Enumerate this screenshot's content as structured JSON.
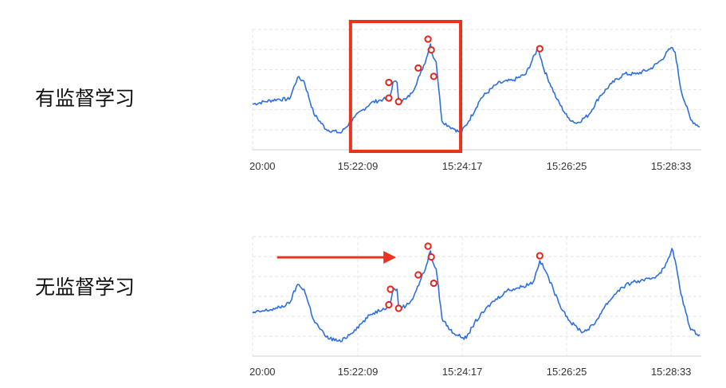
{
  "panels": [
    {
      "label": "有监督学习"
    },
    {
      "label": "无监督学习"
    }
  ],
  "colors": {
    "series": "#2f6fdc",
    "anomaly": "#e8231a",
    "highlight": "#e8341c"
  },
  "chart_data": [
    {
      "type": "line",
      "xlabel": "",
      "ylabel": "",
      "grid": true,
      "x_ticks": [
        {
          "label": "20:00",
          "t": 0
        },
        {
          "label": "15:22:09",
          "t": 129
        },
        {
          "label": "15:24:17",
          "t": 257
        },
        {
          "label": "15:26:25",
          "t": 385
        },
        {
          "label": "15:28:33",
          "t": 513
        }
      ],
      "xlim": [
        0,
        550
      ],
      "ylim": [
        0,
        100
      ],
      "series": [
        {
          "points": [
            [
              0,
              38
            ],
            [
              15,
              40
            ],
            [
              30,
              42
            ],
            [
              45,
              42
            ],
            [
              55,
              60
            ],
            [
              63,
              57
            ],
            [
              75,
              30
            ],
            [
              90,
              17
            ],
            [
              108,
              14
            ],
            [
              125,
              27
            ],
            [
              145,
              39
            ],
            [
              160,
              42
            ],
            [
              168,
              42
            ],
            [
              172,
              56
            ],
            [
              177,
              56
            ],
            [
              179,
              41
            ],
            [
              188,
              42
            ],
            [
              195,
              47
            ],
            [
              205,
              62
            ],
            [
              213,
              76
            ],
            [
              218,
              88
            ],
            [
              220,
              80
            ],
            [
              225,
              73
            ],
            [
              232,
              24
            ],
            [
              240,
              20
            ],
            [
              248,
              17
            ],
            [
              255,
              14
            ],
            [
              265,
              24
            ],
            [
              280,
              43
            ],
            [
              300,
              55
            ],
            [
              320,
              58
            ],
            [
              335,
              63
            ],
            [
              350,
              85
            ],
            [
              357,
              67
            ],
            [
              373,
              42
            ],
            [
              386,
              27
            ],
            [
              397,
              22
            ],
            [
              412,
              29
            ],
            [
              425,
              44
            ],
            [
              440,
              55
            ],
            [
              455,
              63
            ],
            [
              470,
              63
            ],
            [
              487,
              67
            ],
            [
              500,
              74
            ],
            [
              513,
              85
            ],
            [
              518,
              81
            ],
            [
              525,
              50
            ],
            [
              537,
              25
            ],
            [
              548,
              19
            ]
          ]
        }
      ],
      "anomalies": [
        [
          167,
          56
        ],
        [
          167,
          43
        ],
        [
          179,
          40
        ],
        [
          203,
          68
        ],
        [
          215,
          92
        ],
        [
          219,
          83
        ],
        [
          222,
          61
        ],
        [
          352,
          84
        ]
      ],
      "highlight_box": {
        "x_range": [
          120,
          255
        ]
      }
    },
    {
      "type": "line",
      "xlabel": "",
      "ylabel": "",
      "grid": true,
      "x_ticks": [
        {
          "label": "20:00",
          "t": 0
        },
        {
          "label": "15:22:09",
          "t": 129
        },
        {
          "label": "15:24:17",
          "t": 257
        },
        {
          "label": "15:26:25",
          "t": 385
        },
        {
          "label": "15:28:33",
          "t": 513
        }
      ],
      "xlim": [
        0,
        550
      ],
      "ylim": [
        0,
        100
      ],
      "series": [
        {
          "points": [
            [
              0,
              36
            ],
            [
              15,
              38
            ],
            [
              30,
              40
            ],
            [
              45,
              44
            ],
            [
              55,
              60
            ],
            [
              63,
              56
            ],
            [
              75,
              30
            ],
            [
              90,
              16
            ],
            [
              108,
              12
            ],
            [
              125,
              22
            ],
            [
              145,
              35
            ],
            [
              160,
              40
            ],
            [
              168,
              42
            ],
            [
              172,
              56
            ],
            [
              177,
              56
            ],
            [
              179,
              41
            ],
            [
              188,
              42
            ],
            [
              195,
              47
            ],
            [
              205,
              62
            ],
            [
              213,
              76
            ],
            [
              218,
              88
            ],
            [
              220,
              80
            ],
            [
              225,
              73
            ],
            [
              232,
              32
            ],
            [
              242,
              22
            ],
            [
              252,
              17
            ],
            [
              262,
              15
            ],
            [
              272,
              28
            ],
            [
              292,
              44
            ],
            [
              312,
              55
            ],
            [
              330,
              58
            ],
            [
              344,
              62
            ],
            [
              352,
              80
            ],
            [
              360,
              70
            ],
            [
              375,
              45
            ],
            [
              390,
              28
            ],
            [
              405,
              20
            ],
            [
              418,
              26
            ],
            [
              432,
              42
            ],
            [
              448,
              55
            ],
            [
              465,
              62
            ],
            [
              480,
              63
            ],
            [
              495,
              67
            ],
            [
              505,
              74
            ],
            [
              514,
              90
            ],
            [
              518,
              80
            ],
            [
              525,
              52
            ],
            [
              537,
              22
            ],
            [
              548,
              18
            ]
          ]
        }
      ],
      "anomalies": [
        [
          169,
          56
        ],
        [
          167,
          43
        ],
        [
          179,
          40
        ],
        [
          203,
          68
        ],
        [
          215,
          92
        ],
        [
          219,
          83
        ],
        [
          222,
          61
        ],
        [
          352,
          84
        ]
      ],
      "arrow": {
        "from_t": 30,
        "to_t": 176
      }
    }
  ]
}
